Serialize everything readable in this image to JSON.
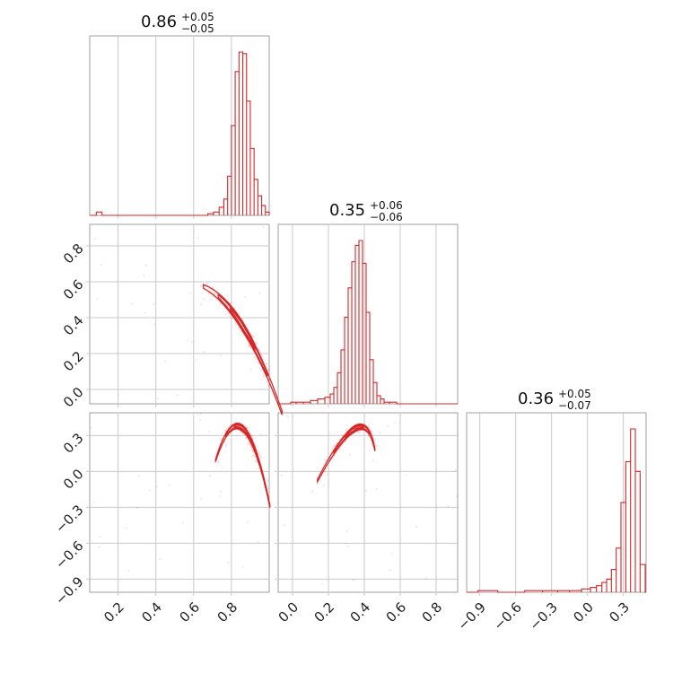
{
  "chart_data": {
    "type": "corner",
    "colors": {
      "series": "#d62728",
      "grid": "#c8c8c8",
      "frame": "#888888"
    },
    "grid": true,
    "params": [
      {
        "title": {
          "median": "0.86",
          "plus": "+0.05",
          "minus": "−0.05"
        },
        "range": [
          0.05,
          1.0
        ],
        "ticks": [
          0.2,
          0.4,
          0.6,
          0.8
        ],
        "ticklabels": [
          "0.2",
          "0.4",
          "0.6",
          "0.8"
        ]
      },
      {
        "title": {
          "median": "0.35",
          "plus": "+0.06",
          "minus": "−0.06"
        },
        "range": [
          -0.08,
          0.92
        ],
        "ticks": [
          0.0,
          0.2,
          0.4,
          0.6,
          0.8
        ],
        "ticklabels": [
          "0.0",
          "0.2",
          "0.4",
          "0.6",
          "0.8"
        ]
      },
      {
        "title": {
          "median": "0.36",
          "plus": "+0.05",
          "minus": "−0.07"
        },
        "range": [
          -1.01,
          0.49
        ],
        "ticks": [
          -0.9,
          -0.6,
          -0.3,
          0.0,
          0.3
        ],
        "ticklabels": [
          "−0.9",
          "−0.6",
          "−0.3",
          "0.0",
          "0.3"
        ]
      }
    ],
    "histograms": [
      {
        "bin_centers": [
          0.07,
          0.1,
          0.13,
          0.66,
          0.69,
          0.72,
          0.75,
          0.77,
          0.79,
          0.81,
          0.83,
          0.85,
          0.87,
          0.89,
          0.91,
          0.93,
          0.95,
          0.97,
          0.99
        ],
        "counts": [
          0,
          2,
          0,
          0,
          1,
          2,
          5,
          10,
          24,
          55,
          88,
          100,
          99,
          70,
          41,
          22,
          12,
          6,
          2
        ]
      },
      {
        "bin_centers": [
          0.0,
          0.04,
          0.08,
          0.12,
          0.16,
          0.2,
          0.22,
          0.24,
          0.26,
          0.28,
          0.3,
          0.32,
          0.34,
          0.36,
          0.38,
          0.4,
          0.42,
          0.44,
          0.46,
          0.48,
          0.5,
          0.52,
          0.56,
          0.6,
          0.8
        ],
        "counts": [
          1,
          1,
          1,
          2,
          3,
          4,
          6,
          10,
          19,
          33,
          53,
          71,
          87,
          97,
          100,
          86,
          56,
          27,
          13,
          5,
          3,
          1,
          1,
          0,
          0
        ]
      },
      {
        "bin_centers": [
          -0.9,
          -0.6,
          -0.45,
          -0.3,
          -0.2,
          -0.1,
          0.0,
          0.05,
          0.1,
          0.14,
          0.18,
          0.22,
          0.26,
          0.3,
          0.34,
          0.38,
          0.42,
          0.46
        ],
        "counts": [
          1,
          0,
          1,
          1,
          1,
          1,
          2,
          3,
          4,
          6,
          8,
          14,
          27,
          55,
          80,
          100,
          74,
          17
        ]
      }
    ]
  }
}
